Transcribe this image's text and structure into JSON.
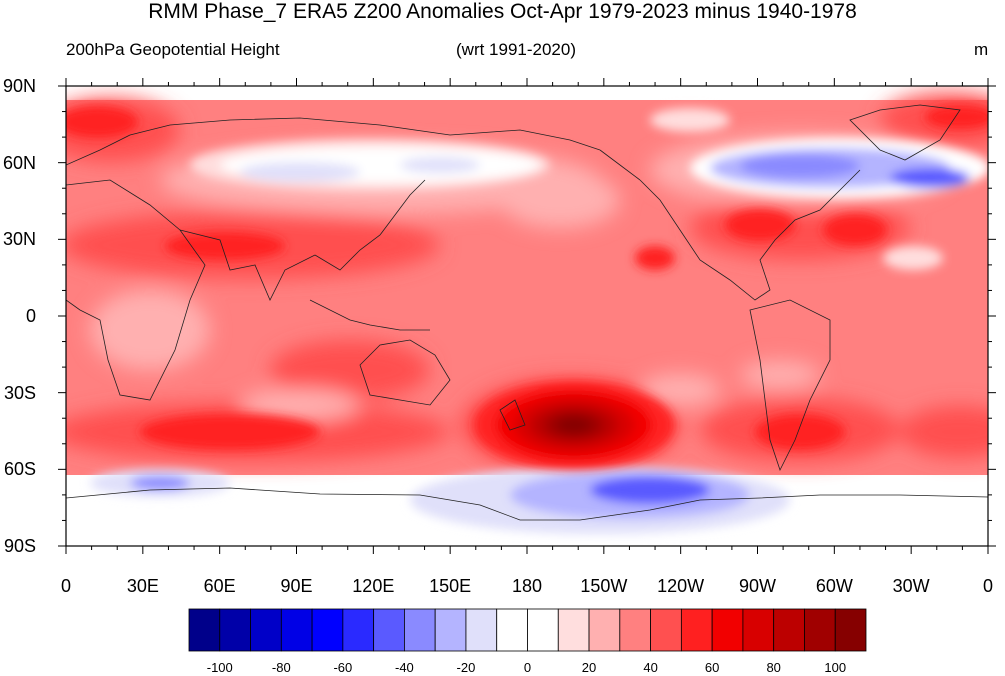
{
  "title": "RMM Phase_7 ERA5 Z200 Anomalies Oct-Apr 1979-2023 minus 1940-1978",
  "subtitle_left": "200hPa Geopotential Height",
  "subtitle_center": "(wrt 1991-2020)",
  "units": "m",
  "lat_labels": [
    "90N",
    "60N",
    "30N",
    "0",
    "30S",
    "60S",
    "90S"
  ],
  "lon_labels": [
    "0",
    "30E",
    "60E",
    "90E",
    "120E",
    "150E",
    "180",
    "150W",
    "120W",
    "90W",
    "60W",
    "30W",
    "0"
  ],
  "colorbar": {
    "colors": [
      "#00008a",
      "#0000a8",
      "#0000c8",
      "#0000e6",
      "#0000ff",
      "#2a2aff",
      "#5a5aff",
      "#8a8aff",
      "#b4b4ff",
      "#e0e0fa",
      "#ffffff",
      "#ffffff",
      "#ffdede",
      "#ffb0b0",
      "#ff8080",
      "#ff5050",
      "#ff2020",
      "#f20000",
      "#d80000",
      "#bc0000",
      "#a00000",
      "#860000"
    ],
    "labels": [
      "-100",
      "-80",
      "-60",
      "-40",
      "-20",
      "0",
      "20",
      "40",
      "60",
      "80",
      "100"
    ]
  },
  "map_data": {
    "variable": "Z200 anomaly difference",
    "units": "m",
    "background_level": 30,
    "features": [
      {
        "region": "Southern Ocean near 140W, 45S",
        "anomaly_m": 100
      },
      {
        "region": "Southern Ocean south of Africa, 60E 48S",
        "anomaly_m": 60
      },
      {
        "region": "South America / South Atlantic, 70W 45S",
        "anomaly_m": 60
      },
      {
        "region": "South Indian Ocean, 0E 48S",
        "anomaly_m": 50
      },
      {
        "region": "Australia, 135E 25S",
        "anomaly_m": 50
      },
      {
        "region": "North Africa to South Asia, 30E-120E 25N",
        "anomaly_m": 50
      },
      {
        "region": "Eastern North America, 75W 35N",
        "anomaly_m": 60
      },
      {
        "region": "North Atlantic, 45W 32N",
        "anomaly_m": 60
      },
      {
        "region": "Northern Europe / Scandinavia, 15E 70N",
        "anomaly_m": 50
      },
      {
        "region": "Arctic north of Greenland, 10W 75N",
        "anomaly_m": 50
      },
      {
        "region": "Eurasia belt, 60E-170E 55N",
        "anomaly_m": -5
      },
      {
        "region": "Canada / Hudson Bay, 80W 55N",
        "anomaly_m": -40
      },
      {
        "region": "Labrador Sea, 20W 53N",
        "anomaly_m": -50
      },
      {
        "region": "Amundsen-Bellingshausen Sea, 130W 65S",
        "anomaly_m": -50
      },
      {
        "region": "Indian Ocean sector of Antarctica, 50E 65S",
        "anomaly_m": -30
      }
    ]
  }
}
